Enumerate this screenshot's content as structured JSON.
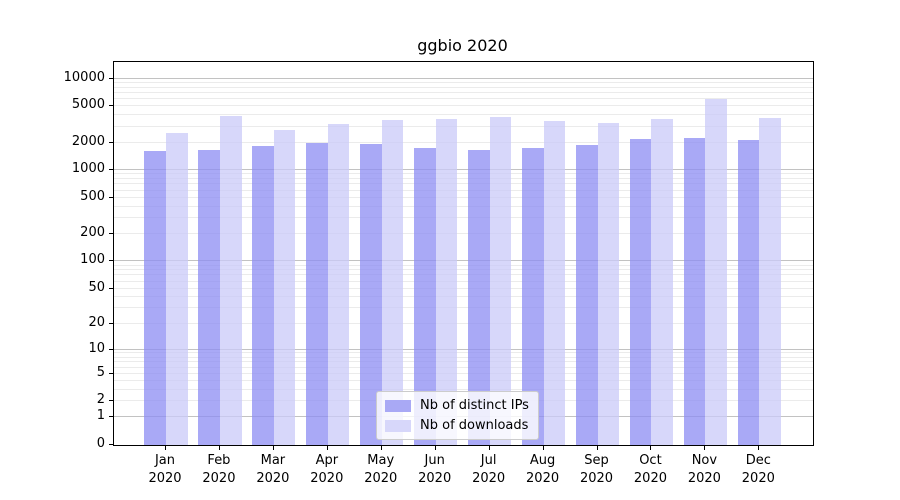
{
  "title": "ggbio 2020",
  "chart_data": {
    "type": "bar",
    "title": "ggbio 2020",
    "categories": [
      "Jan 2020",
      "Feb 2020",
      "Mar 2020",
      "Apr 2020",
      "May 2020",
      "Jun 2020",
      "Jul 2020",
      "Aug 2020",
      "Sep 2020",
      "Oct 2020",
      "Nov 2020",
      "Dec 2020"
    ],
    "x_tick_line1": [
      "Jan",
      "Feb",
      "Mar",
      "Apr",
      "May",
      "Jun",
      "Jul",
      "Aug",
      "Sep",
      "Oct",
      "Nov",
      "Dec"
    ],
    "x_tick_line2": "2020",
    "series": [
      {
        "name": "Nb of distinct IPs",
        "color_fill": "rgba(140,140,243,0.75)",
        "color_solid": "#a9a9f5",
        "values": [
          1620,
          1670,
          1860,
          2000,
          1960,
          1770,
          1660,
          1740,
          1910,
          2210,
          2270,
          2130
        ]
      },
      {
        "name": "Nb of downloads",
        "color_fill": "rgba(202,202,248,0.75)",
        "color_solid": "#d7d7fa",
        "values": [
          2550,
          3900,
          2770,
          3230,
          3530,
          3650,
          3840,
          3410,
          3300,
          3600,
          5950,
          3740
        ]
      }
    ],
    "yscale": "log1p",
    "ylim": [
      0,
      15200
    ],
    "yticks": [
      0,
      1,
      2,
      5,
      10,
      20,
      50,
      100,
      200,
      500,
      1000,
      2000,
      5000,
      10000
    ],
    "ygrid_major": [
      1,
      10,
      100,
      1000,
      10000
    ],
    "ygrid_minor_decades": [
      1,
      10,
      100,
      1000
    ],
    "grid": "horizontal, major + minor, behind semi-transparent bars",
    "legend_position": "inside bottom-center",
    "xlabel": "",
    "ylabel": ""
  },
  "legend": {
    "items": [
      {
        "label": "Nb of distinct IPs"
      },
      {
        "label": "Nb of downloads"
      }
    ]
  }
}
